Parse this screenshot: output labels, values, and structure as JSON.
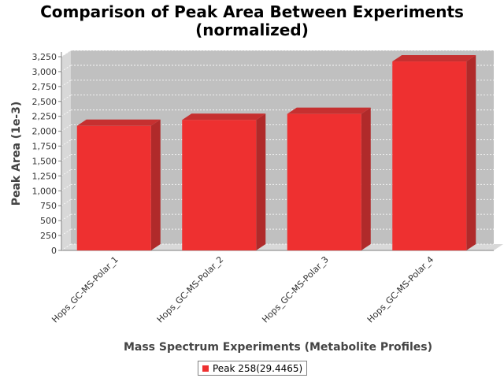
{
  "chart_data": {
    "type": "bar",
    "title": "Comparison of Peak Area Between Experiments",
    "subtitle": "(normalized)",
    "xlabel": "Mass Spectrum Experiments (Metabolite Profiles)",
    "ylabel": "Peak Area (1e-3)",
    "categories": [
      "Hops_GC-MS-Polar_1",
      "Hops_GC-MS-Polar_2",
      "Hops_GC-MS-Polar_3",
      "Hops_GC-MS-Polar_4"
    ],
    "series": [
      {
        "name": "Peak 258(29.4465)",
        "values": [
          2090,
          2190,
          2290,
          3170
        ]
      }
    ],
    "ylim": [
      0,
      3250
    ],
    "yticks": [
      0,
      250,
      500,
      750,
      1000,
      1250,
      1500,
      1750,
      2000,
      2250,
      2500,
      2750,
      3000,
      3250
    ],
    "ytick_labels": [
      "0",
      "250",
      "500",
      "750",
      "1,000",
      "1,250",
      "1,500",
      "1,750",
      "2,000",
      "2,250",
      "2,500",
      "2,750",
      "3,000",
      "3,250"
    ],
    "grid": true,
    "legend_position": "bottom-center",
    "colors": {
      "bar_front": "#ee3030",
      "bar_side": "#b02a2a",
      "bar_top": "#c63030",
      "plot_background": "#c0c0c0",
      "wall": "#d8d8d8",
      "gridline": "#ffffff"
    }
  }
}
